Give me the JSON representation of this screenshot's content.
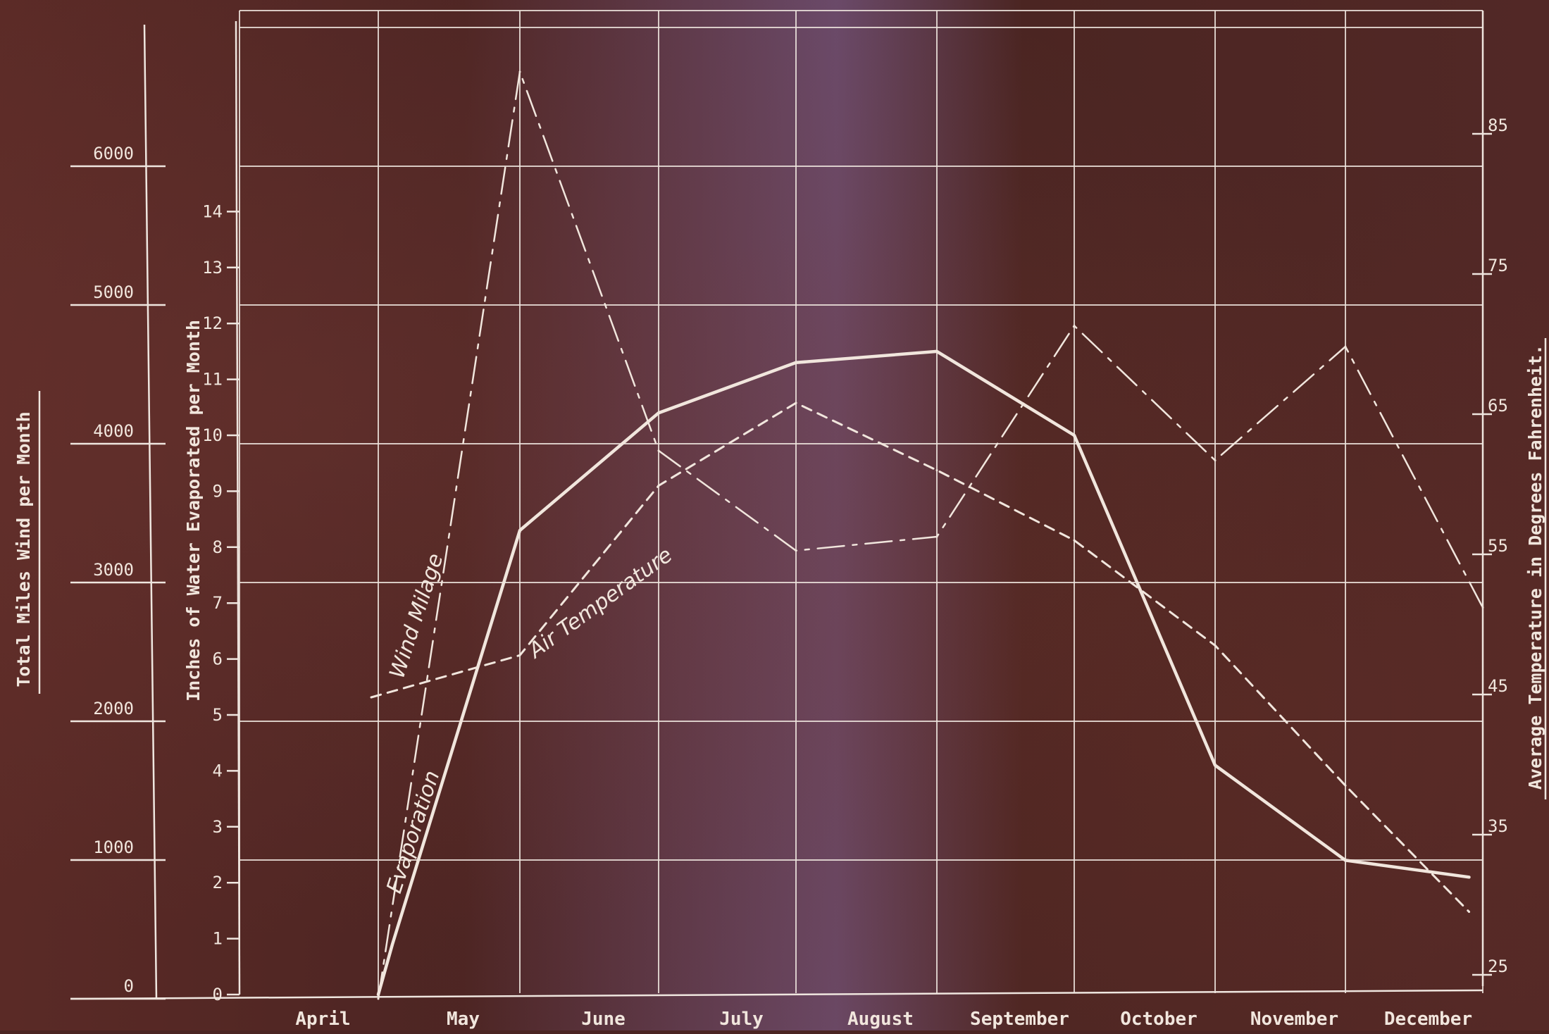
{
  "chart_data": {
    "type": "line",
    "categories": [
      "April",
      "May",
      "June",
      "July",
      "August",
      "September",
      "October",
      "November",
      "December"
    ],
    "axes": {
      "left_outer": {
        "label": "Total Miles Wind per Month",
        "ticks": [
          "0",
          "1000",
          "2000",
          "3000",
          "4000",
          "5000",
          "6000"
        ],
        "range": [
          0,
          6000
        ]
      },
      "left_inner": {
        "label": "Inches of Water Evaporated per Month",
        "ticks": [
          "0",
          "1",
          "2",
          "3",
          "4",
          "5",
          "6",
          "7",
          "8",
          "9",
          "10",
          "11",
          "12",
          "13",
          "14"
        ],
        "range": [
          0,
          15
        ]
      },
      "right": {
        "label": "Average Temperature in Degrees Fahrenheit.",
        "ticks": [
          "25",
          "35",
          "45",
          "55",
          "65",
          "75",
          "85"
        ],
        "range": [
          25,
          85
        ]
      }
    },
    "series": [
      {
        "name": "Wind Milage",
        "axis": "left_outer",
        "style": "dash-dot",
        "points": [
          [
            1.0,
            0
          ],
          [
            2.0,
            6680
          ],
          [
            3.0,
            3950
          ],
          [
            4.0,
            3230
          ],
          [
            5.0,
            3330
          ],
          [
            6.0,
            4850
          ],
          [
            7.0,
            3880
          ],
          [
            8.0,
            4700
          ],
          [
            9.0,
            2820
          ]
        ]
      },
      {
        "name": "Evaporation",
        "axis": "left_inner",
        "style": "solid",
        "points": [
          [
            1.0,
            0
          ],
          [
            1.1,
            0.9
          ],
          [
            2.0,
            8.3
          ],
          [
            3.0,
            10.4
          ],
          [
            4.0,
            11.3
          ],
          [
            5.0,
            11.5
          ],
          [
            6.0,
            10.0
          ],
          [
            7.0,
            4.1
          ],
          [
            8.0,
            2.4
          ],
          [
            8.9,
            2.1
          ]
        ]
      },
      {
        "name": "Air Temperature",
        "axis": "right",
        "style": "dashed",
        "points": [
          [
            0.95,
            44.8
          ],
          [
            2.0,
            47.8
          ],
          [
            3.0,
            59.9
          ],
          [
            4.0,
            65.8
          ],
          [
            5.0,
            61.0
          ],
          [
            6.0,
            56.0
          ],
          [
            7.0,
            48.5
          ],
          [
            8.0,
            38.5
          ],
          [
            8.9,
            29.5
          ]
        ]
      }
    ],
    "annotations": [
      {
        "text": "Wind Milage",
        "series": "Wind Milage"
      },
      {
        "text": "Evaporation",
        "series": "Evaporation"
      },
      {
        "text": "Air Temperature",
        "series": "Air Temperature"
      }
    ],
    "colors": {
      "background": "#4a2422",
      "lines": "#f1e6dd"
    },
    "grid": true
  }
}
